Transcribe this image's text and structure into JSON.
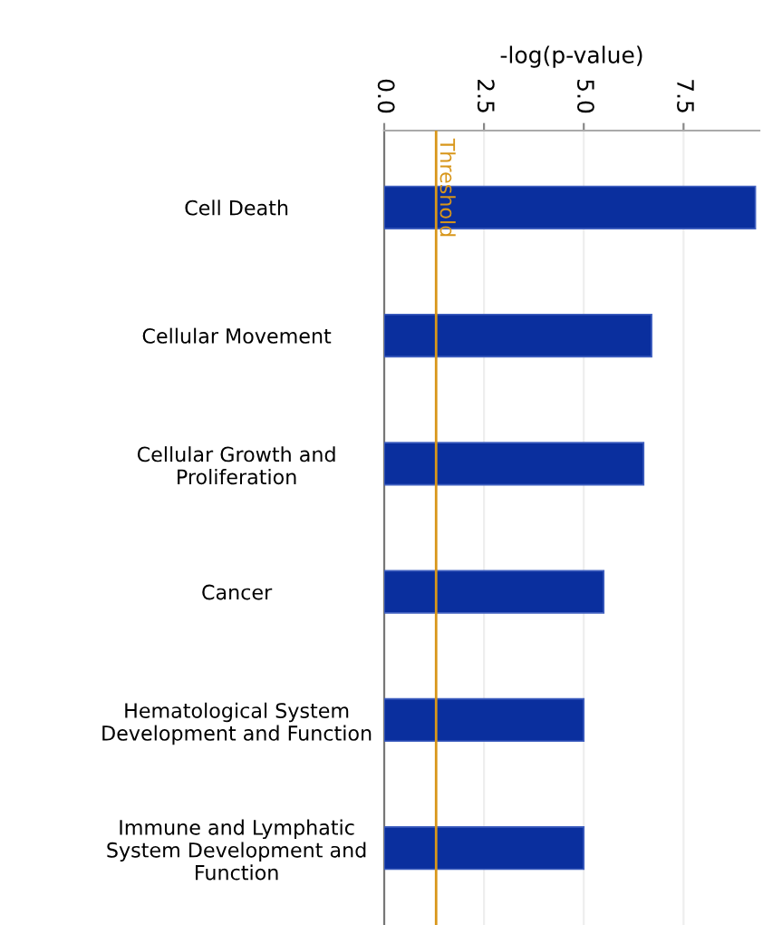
{
  "chart_data": {
    "type": "bar",
    "orientation": "horizontal",
    "xlabel": "-log(p-value)",
    "categories": [
      "Cell Death",
      "Cellular Movement",
      "Cellular Growth and\nProliferation",
      "Cancer",
      "Hematological System\nDevelopment and Function",
      "Immune and Lymphatic\nSystem Development and\nFunction"
    ],
    "values": [
      9.3,
      6.7,
      6.5,
      5.5,
      5.0,
      5.0
    ],
    "color": "#0a2f9e",
    "xlim": [
      0,
      9.4
    ],
    "xticks": [
      {
        "value": 0,
        "label": "0.0"
      },
      2.5,
      {
        "value": 5,
        "label": "5.0"
      },
      7.5
    ],
    "grid": "x",
    "ref_lines": [
      {
        "axis": "x",
        "value": 1.3,
        "label": "Threshold",
        "color": "#d8961a"
      }
    ]
  }
}
